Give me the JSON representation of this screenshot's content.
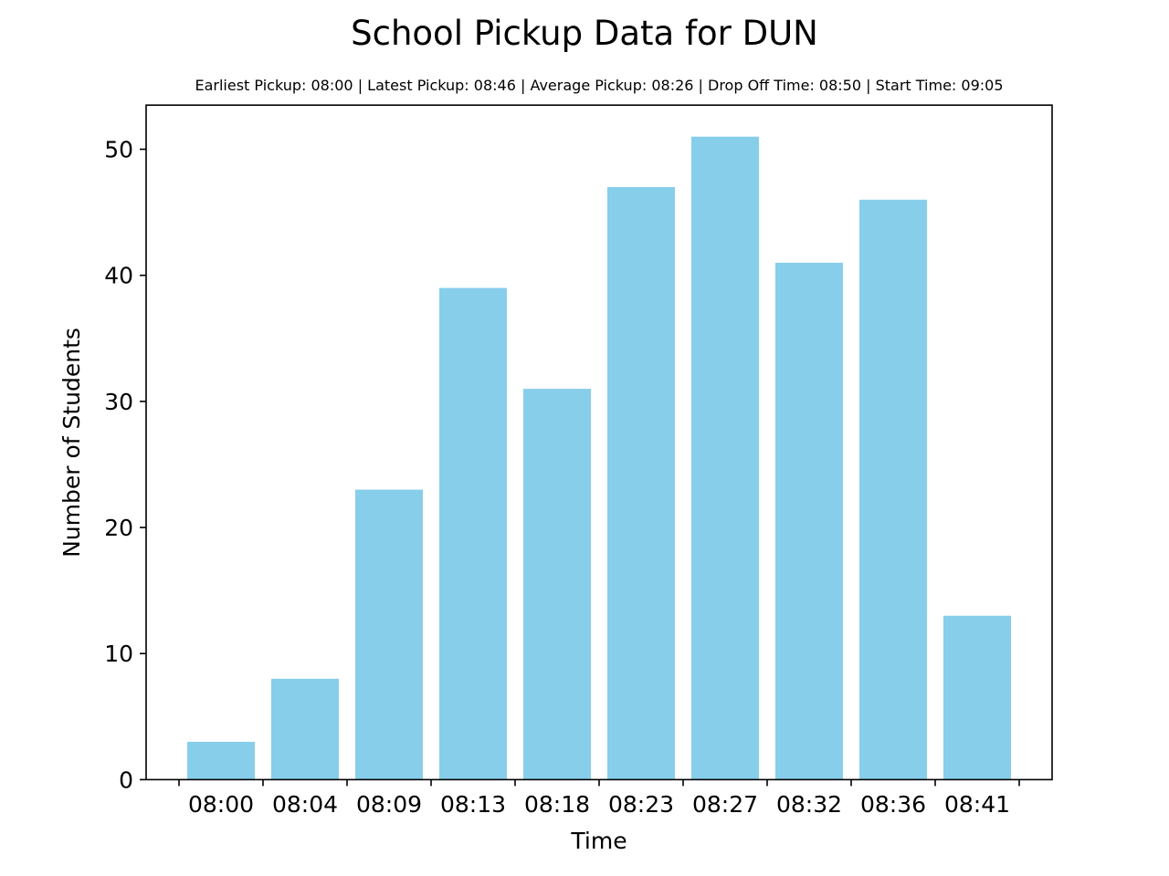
{
  "chart_data": {
    "type": "bar",
    "title": "School Pickup Data for DUN",
    "subtitle": "Earliest Pickup: 08:00 | Latest Pickup: 08:46 | Average Pickup: 08:26 | Drop Off Time: 08:50 | Start Time: 09:05",
    "xlabel": "Time",
    "ylabel": "Number of Students",
    "categories": [
      "08:00",
      "08:04",
      "08:09",
      "08:13",
      "08:18",
      "08:23",
      "08:27",
      "08:32",
      "08:36",
      "08:41"
    ],
    "values": [
      3,
      8,
      23,
      39,
      31,
      47,
      51,
      41,
      46,
      13
    ],
    "ylim": [
      0,
      53.5
    ],
    "yticks": [
      0,
      10,
      20,
      30,
      40,
      50
    ],
    "bar_color": "#87ceeb",
    "grid": false,
    "legend": "none"
  }
}
